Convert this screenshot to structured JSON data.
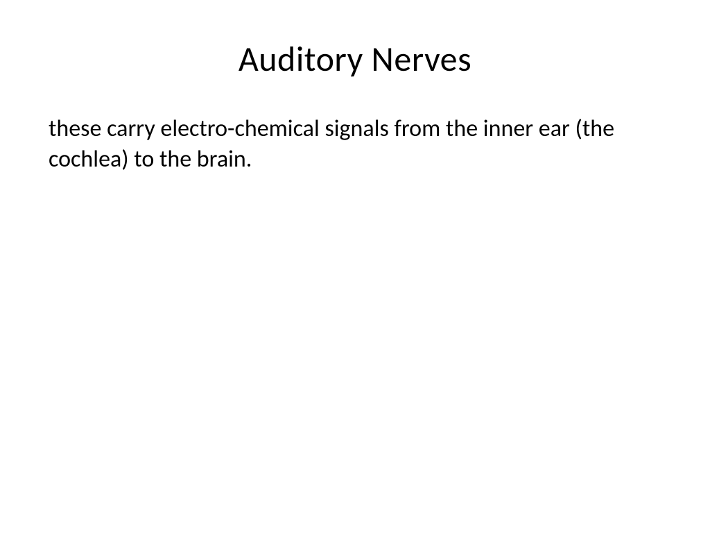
{
  "slide": {
    "title": "Auditory Nerves",
    "body": "these carry electro-chemical signals from the inner ear (the cochlea) to the brain.",
    "background_color": "#ffffff",
    "text_color": "#000000",
    "title_fontsize": 50,
    "body_fontsize": 34,
    "font_family": "Calibri"
  }
}
